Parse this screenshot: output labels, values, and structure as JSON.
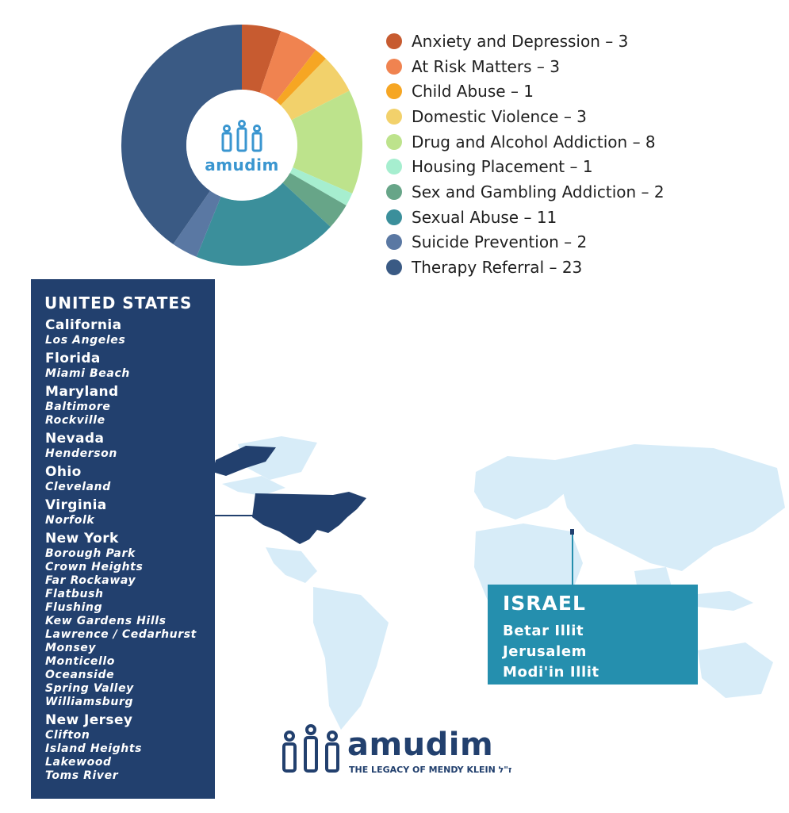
{
  "chart_data": {
    "type": "pie",
    "categories": [
      "Anxiety and Depression",
      "At Risk Matters",
      "Child Abuse",
      "Domestic Violence",
      "Drug and Alcohol Addiction",
      "Housing Placement",
      "Sex and Gambling Addiction",
      "Sexual Abuse",
      "Suicide Prevention",
      "Therapy Referral"
    ],
    "values": [
      3,
      3,
      1,
      3,
      8,
      1,
      2,
      11,
      2,
      23
    ],
    "colors": [
      "#c75b30",
      "#f08350",
      "#f6a623",
      "#f2d16b",
      "#bde38c",
      "#a6eecf",
      "#67a588",
      "#3b8f9b",
      "#5a78a3",
      "#3a5a84"
    ],
    "legend_labels": [
      "Anxiety and Depression – 3",
      "At Risk Matters – 3",
      "Child Abuse – 1",
      "Domestic Violence – 3",
      "Drug and Alcohol Addiction – 8",
      "Housing Placement – 1",
      "Sex and Gambling Addiction – 2",
      "Sexual Abuse – 11",
      "Suicide Prevention – 2",
      "Therapy Referral – 23"
    ],
    "legend_placement": "right",
    "donut": true
  },
  "center_logo": {
    "word": "amudim",
    "icon": "three-pillars-icon"
  },
  "us_panel": {
    "title": "UNITED STATES",
    "states": [
      {
        "name": "California",
        "cities": [
          "Los Angeles"
        ]
      },
      {
        "name": "Florida",
        "cities": [
          "Miami Beach"
        ]
      },
      {
        "name": "Maryland",
        "cities": [
          "Baltimore",
          "Rockville"
        ]
      },
      {
        "name": "Nevada",
        "cities": [
          "Henderson"
        ]
      },
      {
        "name": "Ohio",
        "cities": [
          "Cleveland"
        ]
      },
      {
        "name": "Virginia",
        "cities": [
          "Norfolk"
        ]
      },
      {
        "name": "New York",
        "cities": [
          "Borough Park",
          "Crown Heights",
          "Far Rockaway",
          "Flatbush",
          "Flushing",
          "Kew Gardens Hills",
          "Lawrence / Cedarhurst",
          "Monsey",
          "Monticello",
          "Oceanside",
          "Spring Valley",
          "Williamsburg"
        ]
      },
      {
        "name": "New Jersey",
        "cities": [
          "Clifton",
          "Island Heights",
          "Lakewood",
          "Toms River"
        ]
      }
    ]
  },
  "israel_panel": {
    "title": "ISRAEL",
    "cities": [
      "Betar Illit",
      "Jerusalem",
      "Modi'in Illit"
    ]
  },
  "bottom_logo": {
    "word": "amudim",
    "tagline": "THE LEGACY OF MENDY KLEIN ז\"ל",
    "icon": "three-pillars-icon"
  },
  "map": {
    "highlight_color": "#22406e",
    "land_color": "#d7ecf8",
    "connector_color": "#258fae"
  }
}
